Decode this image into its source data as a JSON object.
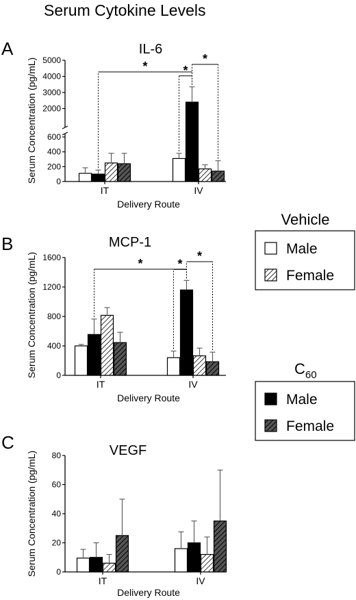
{
  "title": "Serum Cytokine Levels",
  "legends": [
    {
      "title": "Vehicle",
      "title_sub": "",
      "entries": [
        {
          "label": "Male",
          "fill": "#ffffff",
          "hatch": false
        },
        {
          "label": "Female",
          "fill": "#ffffff",
          "hatch": true
        }
      ]
    },
    {
      "title": "C",
      "title_sub": "60",
      "entries": [
        {
          "label": "Male",
          "fill": "#000000",
          "hatch": false
        },
        {
          "label": "Female",
          "fill": "#555555",
          "hatch": true
        }
      ]
    }
  ],
  "chart_data": [
    {
      "type": "bar",
      "panel": "A",
      "title": "IL-6",
      "xlabel": "Delivery Route",
      "ylabel": "Serum Concentration (pg/mL)",
      "categories": [
        "IT",
        "IV"
      ],
      "series": [
        {
          "name": "Vehicle Male",
          "values": [
            110,
            310
          ],
          "errors": [
            75,
            70
          ]
        },
        {
          "name": "C60 Male",
          "values": [
            100,
            2400
          ],
          "errors": [
            55,
            950
          ]
        },
        {
          "name": "Vehicle Female",
          "values": [
            250,
            170
          ],
          "errors": [
            130,
            55
          ]
        },
        {
          "name": "C60 Female",
          "values": [
            240,
            140
          ],
          "errors": [
            140,
            140
          ]
        }
      ],
      "y_scale": "broken",
      "y_lower_range": [
        0,
        600
      ],
      "y_upper_range": [
        1000,
        5000
      ],
      "yticks": [
        0,
        200,
        400,
        600,
        2000,
        3000,
        4000,
        5000
      ],
      "significance": [
        {
          "from": "IT-2",
          "to": "IV-2",
          "label": "*"
        },
        {
          "from": "IV-1",
          "to": "IV-2",
          "label": "*"
        },
        {
          "from": "IV-2",
          "to": "IV-4",
          "label": "*"
        }
      ]
    },
    {
      "type": "bar",
      "panel": "B",
      "title": "MCP-1",
      "xlabel": "Delivery Route",
      "ylabel": "Serum Concentration (pg/mL)",
      "categories": [
        "IT",
        "IV"
      ],
      "series": [
        {
          "name": "Vehicle Male",
          "values": [
            400,
            240
          ],
          "errors": [
            20,
            90
          ]
        },
        {
          "name": "C60 Male",
          "values": [
            555,
            1160
          ],
          "errors": [
            210,
            130
          ]
        },
        {
          "name": "Vehicle Female",
          "values": [
            815,
            265
          ],
          "errors": [
            105,
            105
          ]
        },
        {
          "name": "C60 Female",
          "values": [
            445,
            185
          ],
          "errors": [
            140,
            130
          ]
        }
      ],
      "ylim": [
        0,
        1600
      ],
      "yticks": [
        0,
        400,
        800,
        1200,
        1600
      ],
      "significance": [
        {
          "from": "IT-2",
          "to": "IV-2",
          "label": "*"
        },
        {
          "from": "IV-1",
          "to": "IV-2",
          "label": "*"
        },
        {
          "from": "IV-2",
          "to": "IV-4",
          "label": "*"
        }
      ]
    },
    {
      "type": "bar",
      "panel": "C",
      "title": "VEGF",
      "xlabel": "Delivery Route",
      "ylabel": "Serum Concentration (pg/mL)",
      "categories": [
        "IT",
        "IV"
      ],
      "series": [
        {
          "name": "Vehicle Male",
          "values": [
            9.5,
            16
          ],
          "errors": [
            6,
            11.5
          ]
        },
        {
          "name": "C60 Male",
          "values": [
            10,
            20
          ],
          "errors": [
            10,
            15
          ]
        },
        {
          "name": "Vehicle Female",
          "values": [
            6,
            12
          ],
          "errors": [
            6,
            12
          ]
        },
        {
          "name": "C60 Female",
          "values": [
            25,
            35
          ],
          "errors": [
            25,
            35
          ]
        }
      ],
      "ylim": [
        0,
        80
      ],
      "yticks": [
        0,
        20,
        40,
        60,
        80
      ],
      "significance": []
    }
  ]
}
